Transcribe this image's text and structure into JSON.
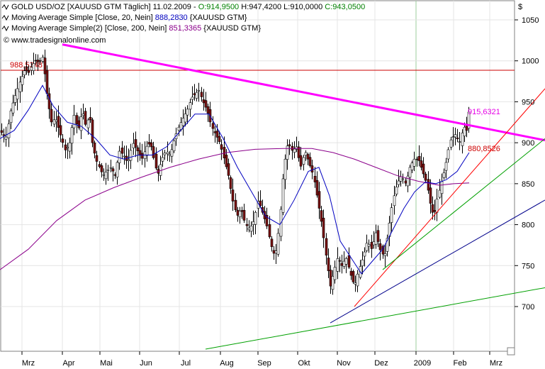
{
  "chart_data": {
    "type": "candlestick",
    "currency_label": "$",
    "legend": [
      {
        "prefix": "GOLD USD/OZ [XAUUSD GTM  Täglich] 11.02.2009 - ",
        "parts": [
          {
            "text": "O:914,9500",
            "color": "#008000"
          },
          {
            "text": " H:947,4200",
            "color": "#000000"
          },
          {
            "text": " L:910,0000",
            "color": "#000000"
          },
          {
            "text": " C:943,0500",
            "color": "#008000"
          }
        ]
      },
      {
        "prefix": "Moving Average Simple [Close, 20, Nein] ",
        "parts": [
          {
            "text": "888,2830",
            "color": "#0000c0"
          },
          {
            "text": " {XAUUSD GTM}",
            "color": "#000000"
          }
        ]
      },
      {
        "prefix": "Moving Average Simple(2) [Close, 200, Nein] ",
        "parts": [
          {
            "text": "851,3365",
            "color": "#8b008b"
          },
          {
            "text": " {XAUUSD GTM}",
            "color": "#000000"
          }
        ]
      }
    ],
    "watermark": "© www.tradesignalonline.com",
    "y_axis": {
      "ylim": [
        645,
        1065
      ],
      "ticks": [
        700,
        750,
        800,
        850,
        900,
        950,
        1000,
        1050
      ]
    },
    "x_axis": {
      "labels": [
        "Mrz",
        "Apr",
        "Mai",
        "Jun",
        "Jul",
        "Aug",
        "Sep",
        "Okt",
        "Nov",
        "Dez",
        "2009",
        "Feb",
        "Mrz"
      ]
    },
    "horizontal_level": {
      "value": 988.5348,
      "label": "988,5348",
      "color": "#cc0000"
    },
    "annotations": [
      {
        "label": "915,6321",
        "value": 915.6321,
        "color": "#e600e6"
      },
      {
        "label": "880,8526",
        "value": 880.8526,
        "color": "#cc0000"
      }
    ],
    "close_path": [
      [
        0,
        915
      ],
      [
        8,
        905
      ],
      [
        15,
        940
      ],
      [
        22,
        960
      ],
      [
        28,
        975
      ],
      [
        35,
        990
      ],
      [
        40,
        985
      ],
      [
        45,
        995
      ],
      [
        50,
        1000
      ],
      [
        55,
        998
      ],
      [
        60,
        1005
      ],
      [
        66,
        960
      ],
      [
        72,
        925
      ],
      [
        78,
        930
      ],
      [
        85,
        910
      ],
      [
        92,
        890
      ],
      [
        98,
        900
      ],
      [
        104,
        935
      ],
      [
        110,
        915
      ],
      [
        116,
        940
      ],
      [
        121,
        920
      ],
      [
        126,
        935
      ],
      [
        130,
        900
      ],
      [
        135,
        880
      ],
      [
        140,
        870
      ],
      [
        145,
        860
      ],
      [
        150,
        865
      ],
      [
        156,
        870
      ],
      [
        162,
        860
      ],
      [
        168,
        890
      ],
      [
        174,
        885
      ],
      [
        180,
        875
      ],
      [
        187,
        900
      ],
      [
        194,
        890
      ],
      [
        200,
        880
      ],
      [
        206,
        895
      ],
      [
        212,
        900
      ],
      [
        218,
        875
      ],
      [
        222,
        860
      ],
      [
        228,
        880
      ],
      [
        234,
        890
      ],
      [
        240,
        885
      ],
      [
        246,
        905
      ],
      [
        252,
        920
      ],
      [
        258,
        930
      ],
      [
        264,
        940
      ],
      [
        270,
        955
      ],
      [
        276,
        960
      ],
      [
        280,
        965
      ],
      [
        286,
        950
      ],
      [
        292,
        940
      ],
      [
        298,
        920
      ],
      [
        304,
        910
      ],
      [
        310,
        900
      ],
      [
        316,
        880
      ],
      [
        322,
        860
      ],
      [
        328,
        830
      ],
      [
        334,
        810
      ],
      [
        340,
        820
      ],
      [
        346,
        800
      ],
      [
        352,
        795
      ],
      [
        358,
        805
      ],
      [
        364,
        830
      ],
      [
        370,
        815
      ],
      [
        376,
        800
      ],
      [
        382,
        775
      ],
      [
        388,
        760
      ],
      [
        394,
        800
      ],
      [
        400,
        870
      ],
      [
        406,
        900
      ],
      [
        412,
        890
      ],
      [
        418,
        895
      ],
      [
        424,
        870
      ],
      [
        430,
        890
      ],
      [
        436,
        875
      ],
      [
        442,
        860
      ],
      [
        448,
        830
      ],
      [
        454,
        800
      ],
      [
        460,
        760
      ],
      [
        466,
        725
      ],
      [
        470,
        740
      ],
      [
        476,
        760
      ],
      [
        482,
        750
      ],
      [
        488,
        760
      ],
      [
        494,
        740
      ],
      [
        500,
        725
      ],
      [
        506,
        745
      ],
      [
        512,
        760
      ],
      [
        518,
        780
      ],
      [
        524,
        770
      ],
      [
        530,
        790
      ],
      [
        536,
        770
      ],
      [
        542,
        760
      ],
      [
        548,
        795
      ],
      [
        554,
        830
      ],
      [
        560,
        850
      ],
      [
        566,
        860
      ],
      [
        572,
        850
      ],
      [
        578,
        870
      ],
      [
        584,
        880
      ],
      [
        590,
        880
      ],
      [
        596,
        865
      ],
      [
        602,
        850
      ],
      [
        608,
        820
      ],
      [
        612,
        810
      ],
      [
        616,
        830
      ],
      [
        622,
        850
      ],
      [
        628,
        870
      ],
      [
        632,
        890
      ],
      [
        636,
        905
      ],
      [
        642,
        910
      ],
      [
        648,
        900
      ],
      [
        654,
        920
      ],
      [
        658,
        915
      ],
      [
        662,
        943
      ]
    ],
    "ma20_path": [
      [
        0,
        905
      ],
      [
        20,
        915
      ],
      [
        40,
        940
      ],
      [
        60,
        970
      ],
      [
        75,
        945
      ],
      [
        95,
        925
      ],
      [
        115,
        920
      ],
      [
        135,
        905
      ],
      [
        155,
        885
      ],
      [
        175,
        880
      ],
      [
        195,
        885
      ],
      [
        215,
        885
      ],
      [
        235,
        895
      ],
      [
        255,
        915
      ],
      [
        275,
        935
      ],
      [
        295,
        935
      ],
      [
        315,
        905
      ],
      [
        335,
        870
      ],
      [
        355,
        840
      ],
      [
        375,
        810
      ],
      [
        395,
        800
      ],
      [
        415,
        830
      ],
      [
        435,
        865
      ],
      [
        450,
        870
      ],
      [
        465,
        835
      ],
      [
        480,
        780
      ],
      [
        495,
        760
      ],
      [
        510,
        740
      ],
      [
        525,
        755
      ],
      [
        540,
        770
      ],
      [
        555,
        795
      ],
      [
        570,
        820
      ],
      [
        585,
        840
      ],
      [
        600,
        852
      ],
      [
        615,
        850
      ],
      [
        630,
        855
      ],
      [
        645,
        865
      ],
      [
        662,
        888
      ]
    ],
    "ma200_path": [
      [
        0,
        745
      ],
      [
        40,
        770
      ],
      [
        80,
        805
      ],
      [
        120,
        830
      ],
      [
        160,
        845
      ],
      [
        200,
        858
      ],
      [
        240,
        870
      ],
      [
        280,
        880
      ],
      [
        320,
        888
      ],
      [
        360,
        892
      ],
      [
        400,
        893
      ],
      [
        440,
        893
      ],
      [
        470,
        888
      ],
      [
        500,
        880
      ],
      [
        530,
        870
      ],
      [
        560,
        860
      ],
      [
        590,
        853
      ],
      [
        620,
        848
      ],
      [
        640,
        850
      ],
      [
        662,
        851
      ]
    ],
    "trendlines": [
      {
        "color": "#ff00ff",
        "width": 3,
        "points": [
          [
            88,
            1020
          ],
          [
            769,
            903
          ]
        ]
      },
      {
        "color": "#ff0000",
        "width": 1,
        "points": [
          [
            500,
            700
          ],
          [
            769,
            966
          ]
        ]
      },
      {
        "color": "#00a000",
        "width": 1,
        "points": [
          [
            540,
            745
          ],
          [
            769,
            905
          ]
        ]
      },
      {
        "color": "#00008b",
        "width": 1,
        "points": [
          [
            466,
            680
          ],
          [
            769,
            830
          ]
        ]
      },
      {
        "color": "#00a000",
        "width": 1,
        "points": [
          [
            290,
            648
          ],
          [
            769,
            723
          ]
        ]
      }
    ]
  }
}
